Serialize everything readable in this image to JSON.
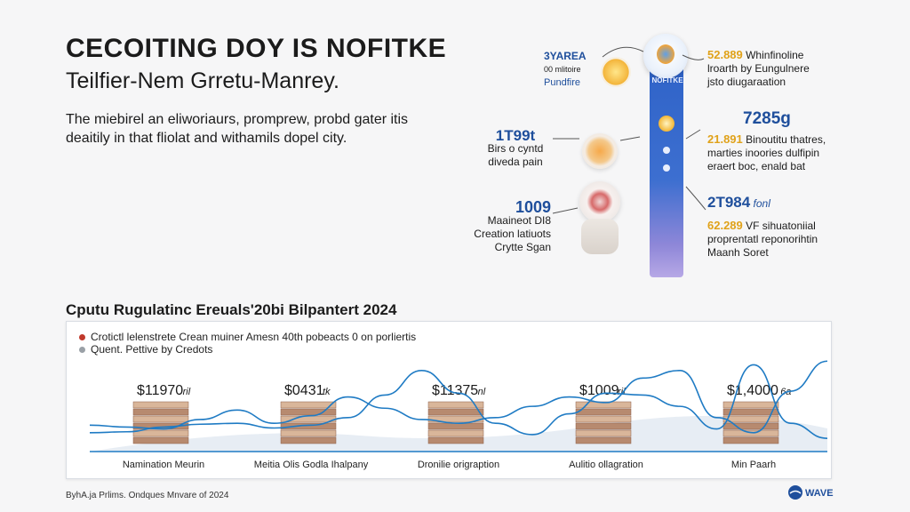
{
  "header": {
    "title": "CECOITING DOY IS NOFITKE",
    "subtitle": "Teilfier-Nem Grretu-Manrey.",
    "intro": "The miebirel an eliworiaurs, promprew, probd gater itis deaitily in that fliolat and withamils dopel city."
  },
  "infographic": {
    "pillar_label": "NOFITKE",
    "left_items": [
      {
        "value": "3YAREA",
        "lines": [
          "00 mlitoire",
          "Pundfire"
        ],
        "value_color": "#1f4f9c"
      },
      {
        "value": "1T99t",
        "lines": [
          "Birs o cyntd",
          "diveda pain"
        ],
        "value_color": "#1f4f9c"
      },
      {
        "value": "1009",
        "lines": [
          "Maaineot DI8",
          "Creation latiuots",
          "Crytte Sgan"
        ],
        "value_color": "#1f4f9c"
      }
    ],
    "right_items": [
      {
        "value": "52.889",
        "suffix": "Whinfinoline",
        "lines": [
          "lroarth by Eungulnere",
          "jsto diugaraation"
        ]
      },
      {
        "value": "7285g",
        "suffix": "",
        "lines": []
      },
      {
        "value": "21.891",
        "suffix": "Binoutitu thatres,",
        "lines": [
          "marties inoories dulfipin",
          "eraert boc, enald bat"
        ]
      },
      {
        "value": "2T984",
        "suffix": "fonl",
        "lines": []
      },
      {
        "value": "62.289",
        "suffix": "VF sihuatoniial",
        "lines": [
          "proprentatl reponorihtin",
          "Maanh Soret"
        ]
      }
    ],
    "colors": {
      "blue": "#1f4f9c",
      "gold": "#e0a21a",
      "pillar": "#2f63c8"
    }
  },
  "chart_data": {
    "type": "line",
    "title": "Cputu Rugulatinc Ereuals'20bi Bilpantert 2024",
    "legend": [
      {
        "label": "Crotictl lelenstrete Crean muiner Amesn 40th pobeacts 0 on porliertis",
        "color": "#c0392b"
      },
      {
        "label": "Quent. Pettive by Credots",
        "color": "#9aa0a6"
      }
    ],
    "categories": [
      "Namination Meurin",
      "Meitia Olis Godla Ihalpany",
      "Dronilie origraption",
      "Aulitio ollagration",
      "Min Paarh"
    ],
    "bar_labels": [
      "$11970",
      "$0431",
      "$11375",
      "$1009",
      "$1,4000"
    ],
    "bar_suffixes": [
      "ril",
      "tk",
      "nl",
      "ril",
      "6a"
    ],
    "x": [
      0,
      0.5,
      1,
      1.5,
      2,
      2.5,
      3,
      3.5,
      4,
      4.5,
      5,
      5.5,
      6,
      6.5,
      7,
      7.5,
      8,
      8.5,
      9,
      9.5,
      10
    ],
    "series": [
      {
        "name": "",
        "color": "#1f7bc4",
        "values": [
          20,
          21,
          26,
          29,
          30,
          25,
          28,
          36,
          60,
          86,
          62,
          30,
          18,
          40,
          62,
          60,
          48,
          24,
          92,
          30,
          14
        ]
      },
      {
        "name": "",
        "color": "#1f7bc4",
        "values": [
          28,
          26,
          24,
          34,
          44,
          30,
          38,
          58,
          46,
          34,
          30,
          36,
          48,
          58,
          52,
          78,
          86,
          36,
          20,
          64,
          96
        ]
      }
    ],
    "ylim": [
      0,
      100
    ],
    "grid": false
  },
  "footer": {
    "left": "ByhA.ja Prlims. Ondques Mnvare of 2024",
    "logo": "WAVE"
  }
}
